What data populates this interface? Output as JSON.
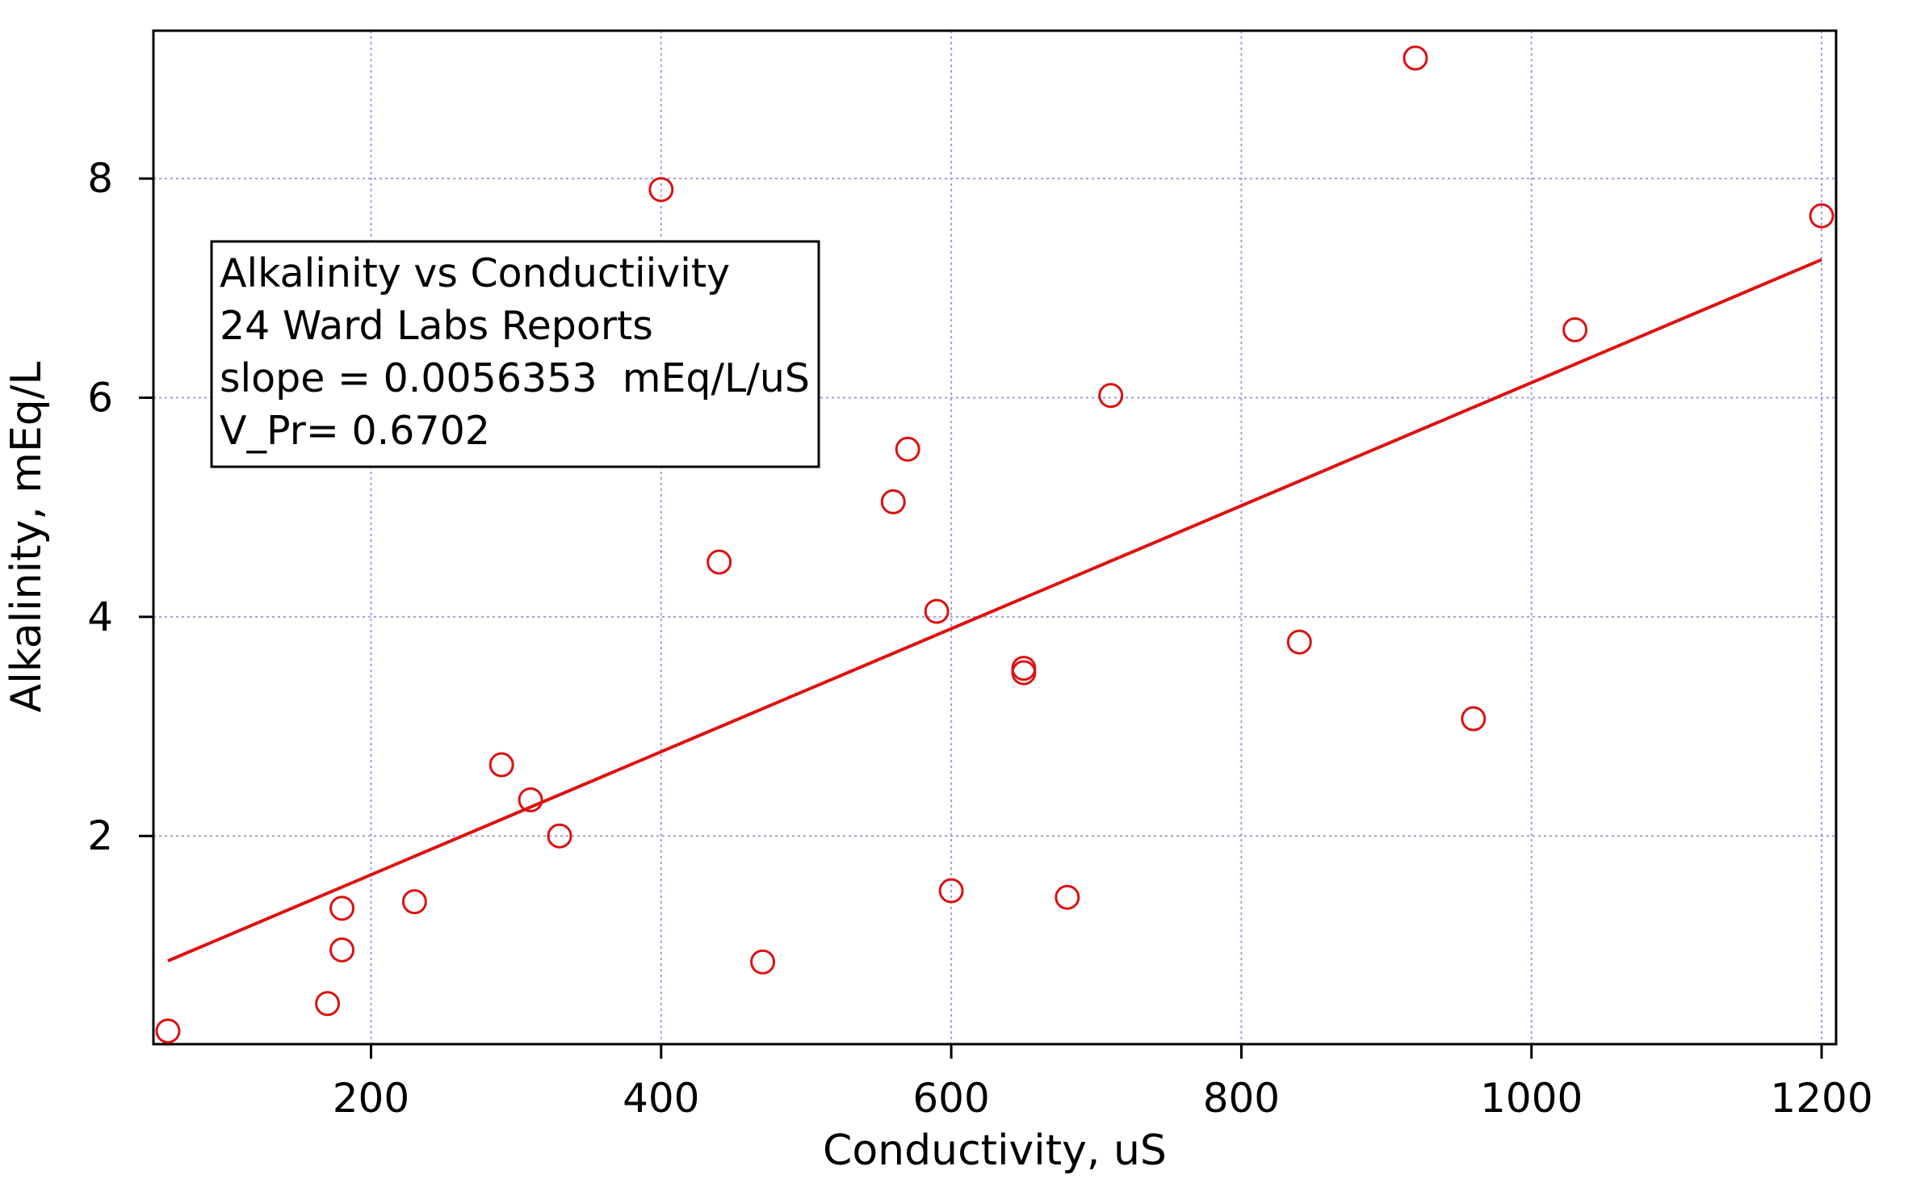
{
  "chart_data": {
    "type": "scatter",
    "xlabel": "Conductivity, uS",
    "ylabel": "Alkalinity, mEq/L",
    "xlim": [
      50,
      1210
    ],
    "ylim": [
      0.1,
      9.35
    ],
    "x_ticks": [
      200,
      400,
      600,
      800,
      1000,
      1200
    ],
    "y_ticks": [
      2,
      4,
      6,
      8
    ],
    "grid": true,
    "colors": {
      "series": "#dd1111",
      "grid": "#9d9de6",
      "axis": "#000000"
    },
    "series": [
      {
        "marker": "open-circle",
        "points": [
          [
            60,
            0.22
          ],
          [
            170,
            0.47
          ],
          [
            180,
            0.96
          ],
          [
            180,
            1.34
          ],
          [
            230,
            1.4
          ],
          [
            290,
            2.65
          ],
          [
            310,
            2.33
          ],
          [
            330,
            2.0
          ],
          [
            400,
            7.9
          ],
          [
            440,
            4.5
          ],
          [
            470,
            0.85
          ],
          [
            560,
            5.05
          ],
          [
            570,
            5.53
          ],
          [
            590,
            4.05
          ],
          [
            600,
            1.5
          ],
          [
            650,
            3.53
          ],
          [
            650,
            3.49
          ],
          [
            680,
            1.44
          ],
          [
            710,
            6.02
          ],
          [
            840,
            3.77
          ],
          [
            920,
            9.1
          ],
          [
            960,
            3.07
          ],
          [
            1030,
            6.62
          ],
          [
            1200,
            7.66
          ]
        ]
      }
    ],
    "fit_line": {
      "x": [
        60,
        1200
      ],
      "y": [
        0.86,
        7.26
      ]
    },
    "annotation": {
      "lines": [
        "Alkalinity vs Conductiivity",
        "24 Ward Labs Reports",
        "slope = 0.0056353  mEq/L/uS",
        "V_Pr= 0.6702"
      ],
      "placement": "top-left"
    }
  }
}
